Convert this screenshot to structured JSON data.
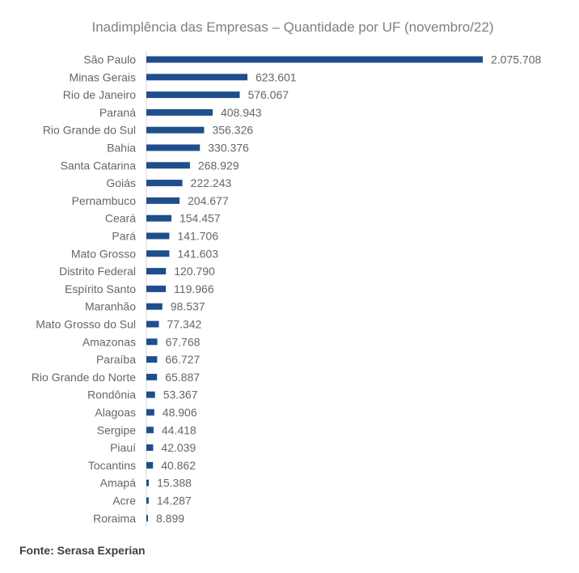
{
  "chart_data": {
    "type": "bar",
    "orientation": "horizontal",
    "title": "Inadimplência das Empresas – Quantidade por UF (novembro/22)",
    "categories": [
      "São Paulo",
      "Minas Gerais",
      "Rio de Janeiro",
      "Paraná",
      "Rio Grande do Sul",
      "Bahia",
      "Santa Catarina",
      "Goiás",
      "Pernambuco",
      "Ceará",
      "Pará",
      "Mato Grosso",
      "Distrito Federal",
      "Espírito Santo",
      "Maranhão",
      "Mato Grosso do Sul",
      "Amazonas",
      "Paraíba",
      "Rio Grande do Norte",
      "Rondônia",
      "Alagoas",
      "Sergipe",
      "Piauí",
      "Tocantins",
      "Amapá",
      "Acre",
      "Roraima"
    ],
    "values": [
      2075708,
      623601,
      576067,
      408943,
      356326,
      330376,
      268929,
      222243,
      204677,
      154457,
      141706,
      141603,
      120790,
      119966,
      98537,
      77342,
      67768,
      66727,
      65887,
      53367,
      48906,
      44418,
      42039,
      40862,
      15388,
      14287,
      8899
    ],
    "value_labels": [
      "2.075.708",
      "623.601",
      "576.067",
      "408.943",
      "356.326",
      "330.376",
      "268.929",
      "222.243",
      "204.677",
      "154.457",
      "141.706",
      "141.603",
      "120.790",
      "119.966",
      "98.537",
      "77.342",
      "67.768",
      "66.727",
      "65.887",
      "53.367",
      "48.906",
      "44.418",
      "42.039",
      "40.862",
      "15.388",
      "14.287",
      "8.899"
    ],
    "bar_color": "#1f4e8c",
    "xlabel": "",
    "ylabel": "",
    "xlim": [
      0,
      2075708
    ],
    "grid": false,
    "legend": "none"
  },
  "source": "Fonte: Serasa Experian"
}
